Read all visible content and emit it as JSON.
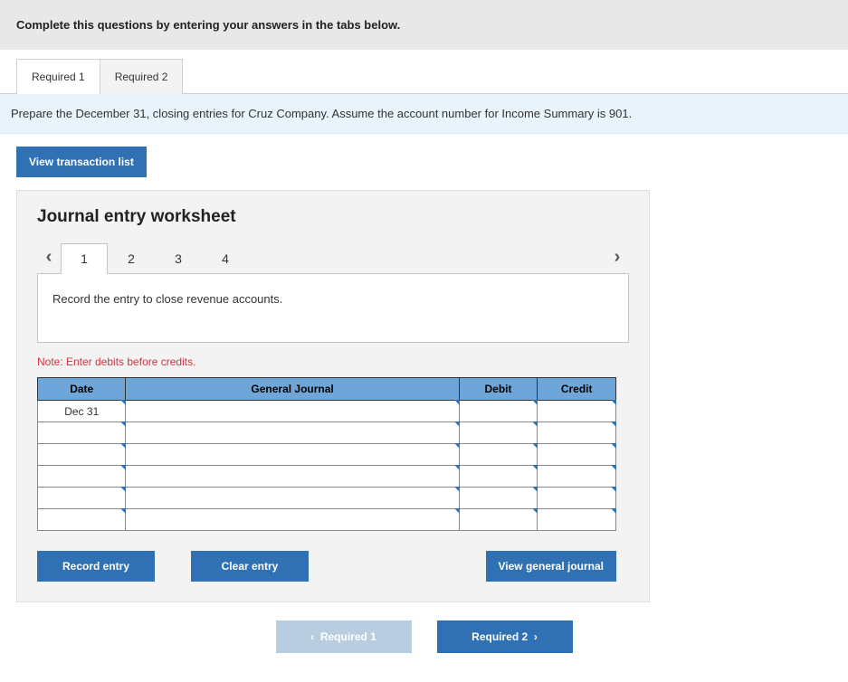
{
  "instruction": "Complete this questions by entering your answers in the tabs below.",
  "tabs": [
    {
      "label": "Required 1",
      "active": true
    },
    {
      "label": "Required 2",
      "active": false
    }
  ],
  "sub_instruction": "Prepare the December 31, closing entries for Cruz Company. Assume the account number for Income Summary is 901.",
  "view_tx_label": "View transaction list",
  "worksheet": {
    "title": "Journal entry worksheet",
    "steps": [
      "1",
      "2",
      "3",
      "4"
    ],
    "current_step_index": 0,
    "prompt": "Record the entry to close revenue accounts.",
    "note": "Note: Enter debits before credits.",
    "table": {
      "headers": {
        "date": "Date",
        "gj": "General Journal",
        "debit": "Debit",
        "credit": "Credit"
      },
      "rows": [
        {
          "date": "Dec 31",
          "gj": "",
          "debit": "",
          "credit": ""
        },
        {
          "date": "",
          "gj": "",
          "debit": "",
          "credit": ""
        },
        {
          "date": "",
          "gj": "",
          "debit": "",
          "credit": ""
        },
        {
          "date": "",
          "gj": "",
          "debit": "",
          "credit": ""
        },
        {
          "date": "",
          "gj": "",
          "debit": "",
          "credit": ""
        },
        {
          "date": "",
          "gj": "",
          "debit": "",
          "credit": ""
        }
      ]
    },
    "buttons": {
      "record": "Record entry",
      "clear": "Clear entry",
      "view_gj": "View general journal"
    }
  },
  "nav": {
    "prev": "Required 1",
    "next": "Required 2"
  },
  "colors": {
    "header_bg": "#e8e8e8",
    "subinstr_bg": "#e8f3fb",
    "btn_blue": "#2f71b3",
    "btn_disabled": "#b9cde1",
    "panel_bg": "#f3f3f3",
    "th_bg": "#6ea6d9",
    "note_color": "#c93741"
  }
}
